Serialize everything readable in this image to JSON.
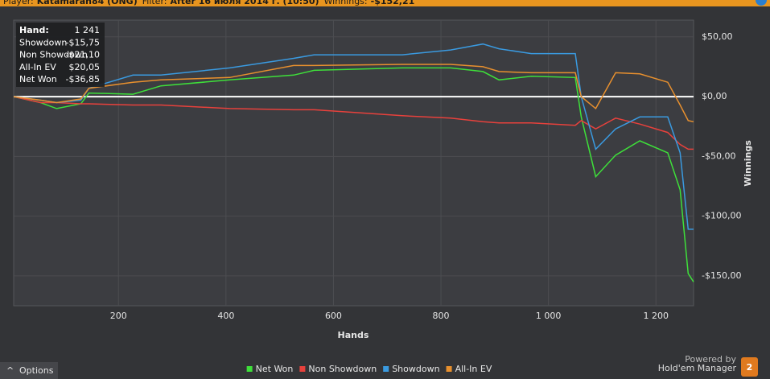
{
  "header": {
    "items": [
      {
        "label": "Player:",
        "value": "Katamaran84 (ONG)"
      },
      {
        "label": "Filter:",
        "value": "After 16 июля 2014 г. (10:50)"
      },
      {
        "label": "Winnings:",
        "value": "-$152,21"
      }
    ]
  },
  "chart_data": {
    "type": "line",
    "x_label": "Hands",
    "y_label": "Winnings",
    "x": [
      5,
      55,
      85,
      130,
      145,
      227,
      279,
      407,
      526,
      564,
      728,
      818,
      878,
      908,
      968,
      1050,
      1061,
      1088,
      1125,
      1170,
      1222,
      1245,
      1260,
      1270
    ],
    "series": [
      {
        "name": "Net Won",
        "color": "#3ee03a",
        "values": [
          0,
          -5,
          -10,
          -6,
          3,
          2,
          9,
          14,
          18,
          22,
          24,
          24,
          21,
          14,
          17,
          16,
          -17,
          -67,
          -49,
          -37,
          -47,
          -78,
          -148,
          -155
        ]
      },
      {
        "name": "Non Showdown",
        "color": "#e8413c",
        "values": [
          0,
          -5,
          -5,
          -6,
          -6,
          -7,
          -7,
          -10,
          -11,
          -11,
          -16,
          -18,
          -21,
          -22,
          -22,
          -24,
          -20,
          -27,
          -18,
          -23,
          -30,
          -40,
          -44,
          -44
        ]
      },
      {
        "name": "Showdown",
        "color": "#3a9ae0",
        "values": [
          0,
          -3,
          -5,
          -3,
          7,
          18,
          18,
          24,
          32,
          35,
          35,
          39,
          44,
          40,
          36,
          36,
          0,
          -44,
          -27,
          -17,
          -17,
          -47,
          -111,
          -111
        ]
      },
      {
        "name": "All-In EV",
        "color": "#e8902e",
        "values": [
          0,
          -3,
          -5,
          -2,
          7,
          12,
          14,
          16,
          26,
          26,
          27,
          27,
          25,
          21,
          20,
          20,
          0,
          -10,
          20,
          19,
          12,
          -7,
          -20,
          -21
        ]
      }
    ],
    "xlim": [
      5,
      1270
    ],
    "ylim": [
      -175,
      64
    ],
    "xticks": [
      200,
      400,
      600,
      800,
      {
        "value": 1000,
        "label": "1 000"
      },
      {
        "value": 1200,
        "label": "1 200"
      }
    ],
    "yticks": [
      {
        "value": 50,
        "label": "$50,00"
      },
      {
        "value": 0,
        "label": "$0,00"
      },
      {
        "value": -50,
        "label": "-$50,00"
      },
      {
        "value": -100,
        "label": "-$100,00"
      },
      {
        "value": -150,
        "label": "-$150,00"
      }
    ],
    "grid": true,
    "legend": "bottom"
  },
  "tooltip": {
    "rows": [
      [
        "Hand:",
        "1 241"
      ],
      [
        "Showdown",
        "-$15,75"
      ],
      [
        "Non Showdown",
        "-$21,10"
      ],
      [
        "All-In EV",
        "$20,05"
      ],
      [
        "Net Won",
        "-$36,85"
      ]
    ]
  },
  "footer": {
    "options": "Options",
    "powered_by": "Powered by",
    "brand": "Hold'em Manager",
    "badge": "2"
  }
}
